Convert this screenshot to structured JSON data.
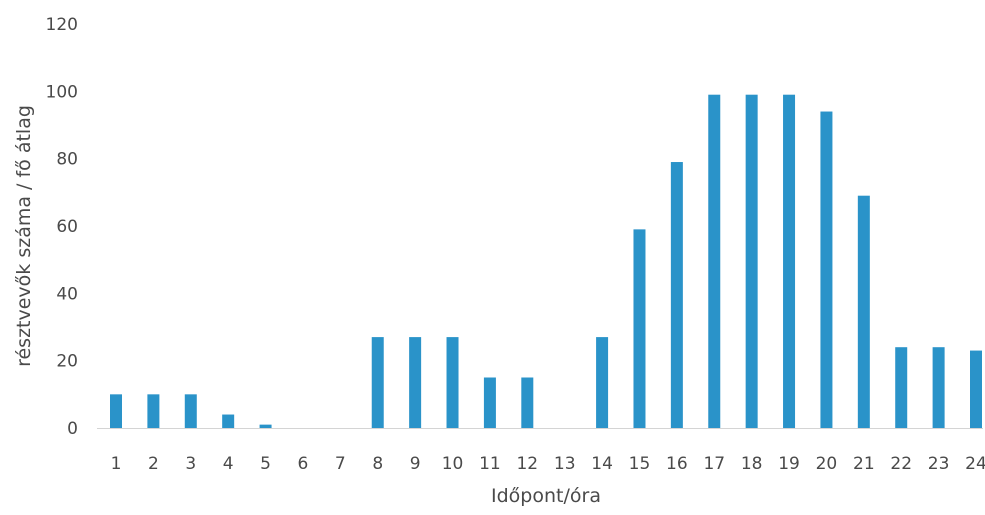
{
  "chart_data": {
    "type": "bar",
    "title": "",
    "xlabel": "Időpont/óra",
    "ylabel": "résztvevők száma / fő átlag",
    "categories": [
      "1",
      "2",
      "3",
      "4",
      "5",
      "6",
      "7",
      "8",
      "9",
      "10",
      "11",
      "12",
      "13",
      "14",
      "15",
      "16",
      "17",
      "18",
      "19",
      "20",
      "21",
      "22",
      "23",
      "24"
    ],
    "values": [
      10,
      10,
      10,
      4,
      1,
      0,
      0,
      27,
      27,
      27,
      15,
      15,
      0,
      27,
      59,
      79,
      99,
      99,
      99,
      94,
      69,
      24,
      24,
      23
    ],
    "ylim": [
      0,
      120
    ],
    "yticks": [
      0,
      20,
      40,
      60,
      80,
      100,
      120
    ],
    "grid": false,
    "legend": "none",
    "bar_color": "#2a93c9",
    "axis_color": "#d4d4d4"
  }
}
